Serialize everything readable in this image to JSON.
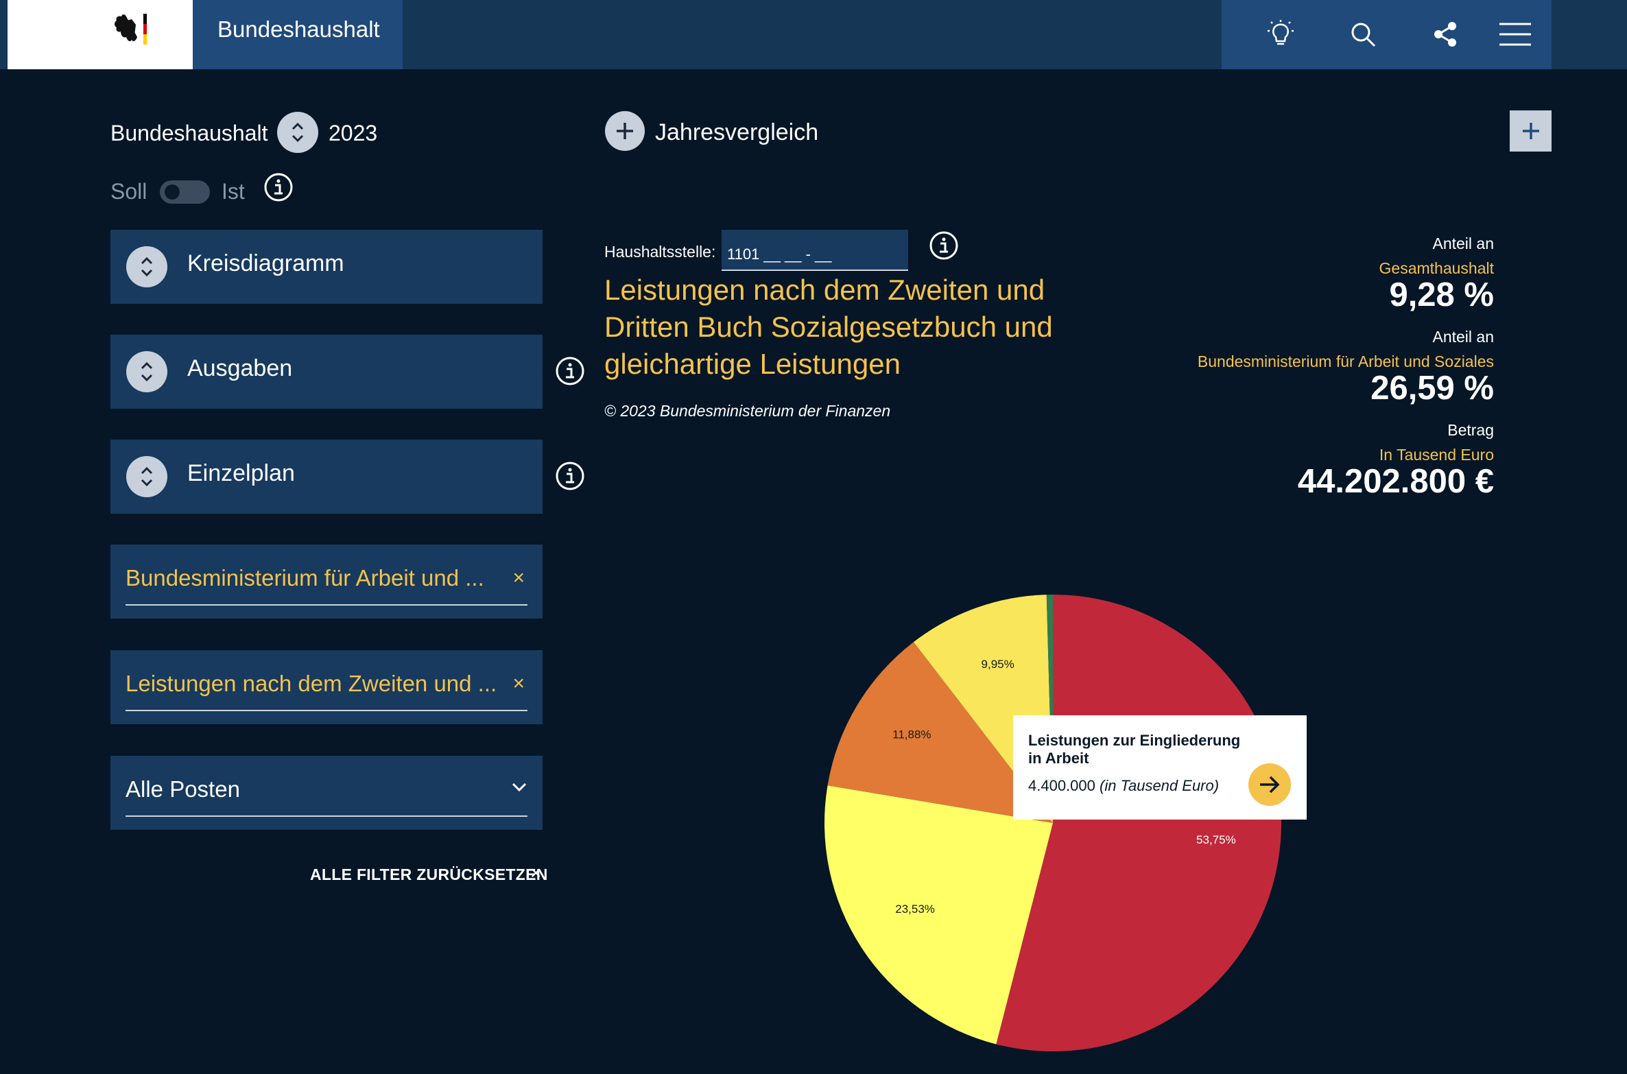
{
  "header": {
    "title": "Bundeshaushalt",
    "icons": [
      "lightbulb-icon",
      "search-icon",
      "share-icon",
      "menu-icon"
    ]
  },
  "left": {
    "budget_label": "Bundeshaushalt",
    "year": "2023",
    "soll_label": "Soll",
    "ist_label": "Ist",
    "panels": [
      {
        "label": "Kreisdiagramm"
      },
      {
        "label": "Ausgaben"
      },
      {
        "label": "Einzelplan"
      }
    ],
    "filters": [
      {
        "label": "Bundesministerium für Arbeit und ...",
        "remove": "×"
      },
      {
        "label": "Leistungen nach dem Zweiten und ...",
        "remove": "×"
      }
    ],
    "posten_select": "Alle Posten",
    "reset_label": "ALLE FILTER ZURÜCKSETZEN",
    "reset_x": "×"
  },
  "main": {
    "jahresvergleich": "Jahresvergleich",
    "haushaltsstelle_label": "Haushaltsstelle:",
    "haushaltsstelle_value": "1101 __ __ - __",
    "title": "Leistungen nach dem Zweiten und Dritten Buch Sozialgesetzbuch und gleichartige Leistungen",
    "copyright": "© 2023 Bundesministerium der Finanzen"
  },
  "stats": {
    "anteil1_label": "Anteil an",
    "anteil1_ref": "Gesamthaushalt",
    "anteil1_value": "9,28 %",
    "anteil2_label": "Anteil an",
    "anteil2_ref": "Bundesministerium für Arbeit und Soziales",
    "anteil2_value": "26,59 %",
    "betrag_label": "Betrag",
    "betrag_unit": "In Tausend Euro",
    "betrag_value": "44.202.800 €"
  },
  "tooltip": {
    "title": "Leistungen zur Eingliederung in Arbeit",
    "value": "4.400.000",
    "unit": "(in Tausend Euro)"
  },
  "colors": {
    "background": "#061626",
    "header": "#163655",
    "accent": "#f5c24c",
    "panel": "#173a5e"
  },
  "chart_data": {
    "type": "pie",
    "slices": [
      {
        "label": "53,75%",
        "value": 53.75,
        "color": "#c1293b"
      },
      {
        "label": "23,53%",
        "value": 23.53,
        "color": "#ffff66"
      },
      {
        "label": "11,88%",
        "value": 11.88,
        "color": "#e07a36"
      },
      {
        "label": "9,95%",
        "value": 9.95,
        "color": "#f9e65a"
      },
      {
        "label": "",
        "value": 0.44,
        "color": "#2e7d4f"
      }
    ]
  }
}
